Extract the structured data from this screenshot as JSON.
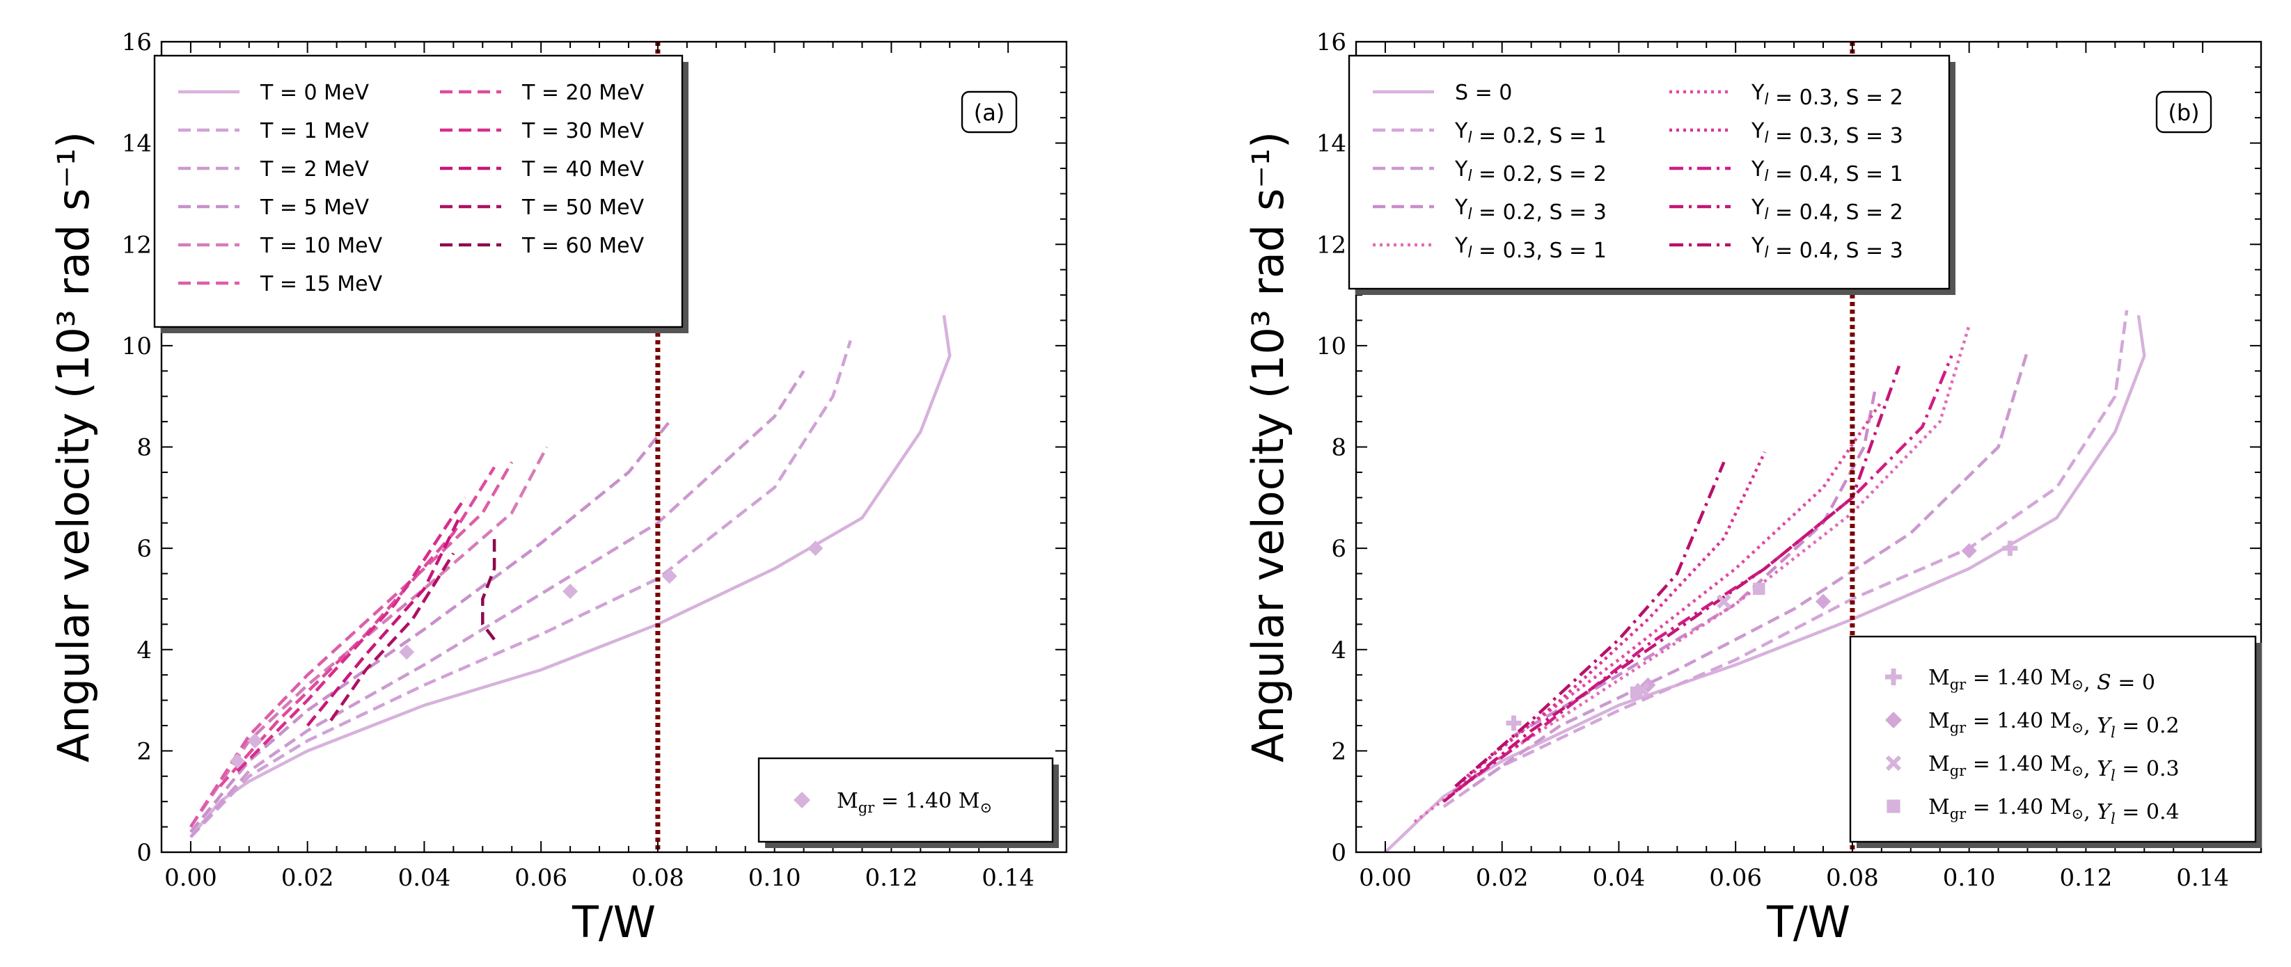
{
  "chart_data": [
    {
      "type": "line",
      "panel_label": "(a)",
      "xlabel": "T/W",
      "ylabel": "Angular velocity",
      "ylabel_unit": "(10³ rad s⁻¹)",
      "xlim": [
        -0.005,
        0.15
      ],
      "ylim": [
        0,
        16
      ],
      "xticks": [
        0.0,
        0.02,
        0.04,
        0.06,
        0.08,
        0.1,
        0.12,
        0.14
      ],
      "xtick_labels": [
        "0.00",
        "0.02",
        "0.04",
        "0.06",
        "0.08",
        "0.10",
        "0.12",
        "0.14"
      ],
      "yticks": [
        0,
        2,
        4,
        6,
        8,
        10,
        12,
        14,
        16
      ],
      "ytick_labels": [
        "0",
        "2",
        "4",
        "6",
        "8",
        "10",
        "12",
        "14",
        "16"
      ],
      "vline": {
        "x": 0.08,
        "color": "#7a0000"
      },
      "legend_columns": 2,
      "legend_position": "upper-left",
      "series": [
        {
          "name": "T = 0 MeV",
          "color": "#d7b2dc",
          "dash": "solid",
          "points": [
            [
              0.0,
              0.3
            ],
            [
              0.005,
              1.0
            ],
            [
              0.01,
              1.4
            ],
            [
              0.02,
              2.0
            ],
            [
              0.04,
              2.9
            ],
            [
              0.06,
              3.6
            ],
            [
              0.08,
              4.5
            ],
            [
              0.1,
              5.6
            ],
            [
              0.115,
              6.6
            ],
            [
              0.125,
              8.3
            ],
            [
              0.13,
              9.8
            ],
            [
              0.129,
              10.6
            ]
          ]
        },
        {
          "name": "T = 1 MeV",
          "color": "#d0a2d6",
          "dash": "dashed",
          "points": [
            [
              0.0,
              0.3
            ],
            [
              0.01,
              1.5
            ],
            [
              0.02,
              2.2
            ],
            [
              0.04,
              3.3
            ],
            [
              0.06,
              4.3
            ],
            [
              0.08,
              5.4
            ],
            [
              0.1,
              7.2
            ],
            [
              0.11,
              9.0
            ],
            [
              0.113,
              10.1
            ]
          ]
        },
        {
          "name": "T = 2 MeV",
          "color": "#cc9ad0",
          "dash": "dashed",
          "points": [
            [
              0.0,
              0.3
            ],
            [
              0.01,
              1.6
            ],
            [
              0.02,
              2.4
            ],
            [
              0.04,
              3.7
            ],
            [
              0.06,
              5.1
            ],
            [
              0.08,
              6.5
            ],
            [
              0.1,
              8.6
            ],
            [
              0.105,
              9.5
            ]
          ]
        },
        {
          "name": "T = 5 MeV",
          "color": "#c890cc",
          "dash": "dashed",
          "points": [
            [
              0.0,
              0.4
            ],
            [
              0.01,
              1.8
            ],
            [
              0.02,
              2.8
            ],
            [
              0.04,
              4.4
            ],
            [
              0.06,
              6.1
            ],
            [
              0.075,
              7.5
            ],
            [
              0.082,
              8.5
            ]
          ]
        },
        {
          "name": "T = 10 MeV",
          "color": "#d67cb8",
          "dash": "dashed",
          "points": [
            [
              0.0,
              0.5
            ],
            [
              0.01,
              2.2
            ],
            [
              0.02,
              3.3
            ],
            [
              0.04,
              5.2
            ],
            [
              0.055,
              6.7
            ],
            [
              0.061,
              8.0
            ]
          ]
        },
        {
          "name": "T = 15 MeV",
          "color": "#dc5ea8",
          "dash": "dashed",
          "points": [
            [
              0.0,
              0.5
            ],
            [
              0.01,
              2.3
            ],
            [
              0.02,
              3.5
            ],
            [
              0.04,
              5.6
            ],
            [
              0.05,
              6.7
            ],
            [
              0.055,
              7.7
            ]
          ]
        },
        {
          "name": "T = 20 MeV",
          "color": "#de4c9e",
          "dash": "dashed",
          "points": [
            [
              0.005,
              1.3
            ],
            [
              0.015,
              2.6
            ],
            [
              0.03,
              4.3
            ],
            [
              0.045,
              6.3
            ],
            [
              0.052,
              7.6
            ]
          ]
        },
        {
          "name": "T = 30 MeV",
          "color": "#d72e8c",
          "dash": "dashed",
          "points": [
            [
              0.008,
              1.6
            ],
            [
              0.02,
              3.0
            ],
            [
              0.035,
              4.9
            ],
            [
              0.047,
              7.0
            ]
          ]
        },
        {
          "name": "T = 40 MeV",
          "color": "#c8167a",
          "dash": "dashed",
          "points": [
            [
              0.02,
              2.5
            ],
            [
              0.03,
              3.9
            ],
            [
              0.04,
              5.2
            ],
            [
              0.046,
              6.6
            ]
          ]
        },
        {
          "name": "T = 50 MeV",
          "color": "#ad0f63",
          "dash": "dashed",
          "points": [
            [
              0.024,
              2.6
            ],
            [
              0.03,
              3.6
            ],
            [
              0.038,
              4.6
            ],
            [
              0.045,
              5.9
            ]
          ]
        },
        {
          "name": "T = 60 MeV",
          "color": "#8e0a4e",
          "dash": "dashed",
          "points": [
            [
              0.052,
              4.2
            ],
            [
              0.05,
              4.5
            ],
            [
              0.05,
              5.0
            ],
            [
              0.052,
              5.6
            ],
            [
              0.052,
              6.3
            ]
          ]
        }
      ],
      "markers": {
        "legend_label": "M",
        "legend_sub": "gr",
        "legend_value": " = 1.40 M",
        "legend_sun": "⊙",
        "shape": "diamond",
        "color": "#d7b2dc",
        "points": [
          [
            0.107,
            6.0
          ],
          [
            0.082,
            5.45
          ],
          [
            0.065,
            5.15
          ],
          [
            0.037,
            3.95
          ],
          [
            0.011,
            2.2
          ],
          [
            0.008,
            1.8
          ]
        ]
      }
    },
    {
      "type": "line",
      "panel_label": "(b)",
      "xlabel": "T/W",
      "ylabel": "Angular velocity",
      "ylabel_unit": "(10³ rad s⁻¹)",
      "xlim": [
        -0.005,
        0.15
      ],
      "ylim": [
        0,
        16
      ],
      "xticks": [
        0.0,
        0.02,
        0.04,
        0.06,
        0.08,
        0.1,
        0.12,
        0.14
      ],
      "xtick_labels": [
        "0.00",
        "0.02",
        "0.04",
        "0.06",
        "0.08",
        "0.10",
        "0.12",
        "0.14"
      ],
      "yticks": [
        0,
        2,
        4,
        6,
        8,
        10,
        12,
        14,
        16
      ],
      "ytick_labels": [
        "0",
        "2",
        "4",
        "6",
        "8",
        "10",
        "12",
        "14",
        "16"
      ],
      "vline": {
        "x": 0.08,
        "color": "#7a0000"
      },
      "legend_columns": 2,
      "legend_position": "upper-left",
      "series": [
        {
          "name": "S = 0",
          "color": "#d7b2dc",
          "dash": "solid",
          "points": [
            [
              0.0,
              0.0
            ],
            [
              0.01,
              1.1
            ],
            [
              0.02,
              1.8
            ],
            [
              0.04,
              2.9
            ],
            [
              0.06,
              3.7
            ],
            [
              0.08,
              4.6
            ],
            [
              0.1,
              5.6
            ],
            [
              0.115,
              6.6
            ],
            [
              0.125,
              8.3
            ],
            [
              0.13,
              9.8
            ],
            [
              0.129,
              10.6
            ]
          ]
        },
        {
          "name": "Y_l = 0.2, S = 1",
          "color": "#d3a6d8",
          "dash": "dashed",
          "points": [
            [
              0.01,
              0.9
            ],
            [
              0.02,
              1.7
            ],
            [
              0.04,
              2.8
            ],
            [
              0.06,
              3.8
            ],
            [
              0.08,
              5.0
            ],
            [
              0.1,
              6.0
            ],
            [
              0.115,
              7.2
            ],
            [
              0.125,
              9.0
            ],
            [
              0.127,
              10.7
            ]
          ]
        },
        {
          "name": "Y_l = 0.2, S = 2",
          "color": "#cc99d0",
          "dash": "dashed",
          "points": [
            [
              0.015,
              1.3
            ],
            [
              0.03,
              2.5
            ],
            [
              0.05,
              3.6
            ],
            [
              0.07,
              4.8
            ],
            [
              0.09,
              6.3
            ],
            [
              0.105,
              8.0
            ],
            [
              0.11,
              9.9
            ]
          ]
        },
        {
          "name": "Y_l = 0.2, S = 3",
          "color": "#c98ccb",
          "dash": "dashed",
          "points": [
            [
              0.022,
              2.3
            ],
            [
              0.04,
              3.5
            ],
            [
              0.06,
              4.9
            ],
            [
              0.075,
              6.5
            ],
            [
              0.082,
              8.0
            ],
            [
              0.084,
              9.2
            ]
          ]
        },
        {
          "name": "Y_l = 0.3, S = 1",
          "color": "#e26cb6",
          "dash": "dotted",
          "points": [
            [
              0.005,
              0.6
            ],
            [
              0.02,
              1.9
            ],
            [
              0.04,
              3.4
            ],
            [
              0.06,
              4.9
            ],
            [
              0.08,
              6.7
            ],
            [
              0.095,
              8.5
            ],
            [
              0.1,
              10.4
            ]
          ]
        },
        {
          "name": "Y_l = 0.3, S = 2",
          "color": "#e04aa4",
          "dash": "dotted",
          "points": [
            [
              0.01,
              1.0
            ],
            [
              0.02,
              2.1
            ],
            [
              0.04,
              3.8
            ],
            [
              0.06,
              5.6
            ],
            [
              0.075,
              7.2
            ],
            [
              0.085,
              8.9
            ]
          ]
        },
        {
          "name": "Y_l = 0.3, S = 3",
          "color": "#db3296",
          "dash": "dotted",
          "points": [
            [
              0.014,
              1.5
            ],
            [
              0.03,
              3.0
            ],
            [
              0.045,
              4.6
            ],
            [
              0.058,
              6.2
            ],
            [
              0.065,
              7.9
            ]
          ]
        },
        {
          "name": "Y_l = 0.4, S = 1",
          "color": "#d11c86",
          "dash": "dashdot",
          "points": [
            [
              0.012,
              1.2
            ],
            [
              0.025,
              2.3
            ],
            [
              0.045,
              4.1
            ],
            [
              0.065,
              5.6
            ],
            [
              0.08,
              7.0
            ],
            [
              0.092,
              8.4
            ],
            [
              0.097,
              9.8
            ]
          ]
        },
        {
          "name": "Y_l = 0.4, S = 2",
          "color": "#c31576",
          "dash": "dashdot",
          "points": [
            [
              0.01,
              1.0
            ],
            [
              0.025,
              2.4
            ],
            [
              0.045,
              4.0
            ],
            [
              0.065,
              5.6
            ],
            [
              0.08,
              7.0
            ],
            [
              0.088,
              9.6
            ]
          ]
        },
        {
          "name": "Y_l = 0.4, S = 3",
          "color": "#b80f6c",
          "dash": "dashdot",
          "points": [
            [
              0.012,
              1.3
            ],
            [
              0.025,
              2.6
            ],
            [
              0.04,
              4.2
            ],
            [
              0.05,
              5.5
            ],
            [
              0.058,
              7.7
            ]
          ]
        }
      ],
      "markers": [
        {
          "legend_label": "M",
          "legend_sub": "gr",
          "legend_value": " = 1.40 M",
          "legend_sun": "⊙",
          "legend_suffix": ", S = 0",
          "shape": "plus",
          "color": "#d7b2dc",
          "points": [
            [
              0.107,
              6.0
            ],
            [
              0.022,
              2.55
            ]
          ]
        },
        {
          "legend_label": "M",
          "legend_sub": "gr",
          "legend_value": " = 1.40 M",
          "legend_sun": "⊙",
          "legend_suffix": ", Y_l = 0.2",
          "shape": "diamond",
          "color": "#d3a6d8",
          "points": [
            [
              0.1,
              5.95
            ],
            [
              0.075,
              4.95
            ],
            [
              0.045,
              3.3
            ]
          ]
        },
        {
          "legend_label": "M",
          "legend_sub": "gr",
          "legend_value": " = 1.40 M",
          "legend_sun": "⊙",
          "legend_suffix": ", Y_l = 0.3",
          "shape": "x",
          "color": "#d7b2dc",
          "points": [
            [
              0.058,
              4.95
            ],
            [
              0.044,
              3.2
            ]
          ]
        },
        {
          "legend_label": "M",
          "legend_sub": "gr",
          "legend_value": " = 1.40 M",
          "legend_sun": "⊙",
          "legend_suffix": ", Y_l = 0.4",
          "shape": "square",
          "color": "#d7b2dc",
          "points": [
            [
              0.064,
              5.2
            ],
            [
              0.043,
              3.15
            ]
          ]
        }
      ]
    }
  ]
}
